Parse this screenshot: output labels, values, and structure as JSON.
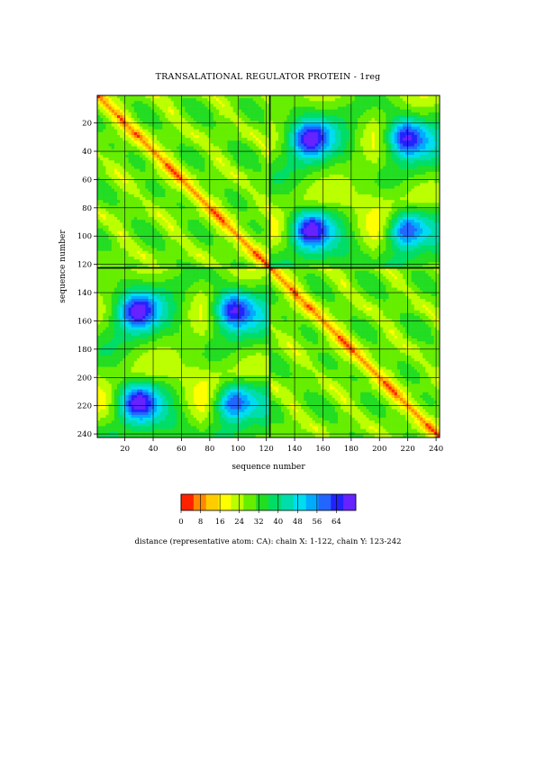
{
  "chart_data": {
    "type": "heatmap",
    "title": "TRANSALATIONAL REGULATOR PROTEIN - 1reg",
    "xlabel": "sequence number",
    "ylabel": "sequence number",
    "x_ticks": [
      20,
      40,
      60,
      80,
      100,
      120,
      140,
      160,
      180,
      200,
      220,
      240
    ],
    "y_ticks": [
      20,
      40,
      60,
      80,
      100,
      120,
      140,
      160,
      180,
      200,
      220,
      240
    ],
    "xlim": [
      1,
      242
    ],
    "ylim": [
      1,
      242
    ],
    "y_direction": "top-to-bottom",
    "chain_boundary": 122,
    "colorbar": {
      "ticks": [
        0,
        8,
        16,
        24,
        32,
        40,
        48,
        56,
        64
      ],
      "range": [
        0,
        72
      ],
      "colors": [
        "#ff2200",
        "#ff8800",
        "#ffcc00",
        "#ffff00",
        "#bbff00",
        "#66ee00",
        "#22dd22",
        "#00dd66",
        "#00ddaa",
        "#00ddee",
        "#00aaff",
        "#2266ff",
        "#2222ff",
        "#6622ff"
      ]
    },
    "caption": "distance (representative atom: CA): chain X: 1-122, chain Y: 123-242",
    "grid": true
  }
}
